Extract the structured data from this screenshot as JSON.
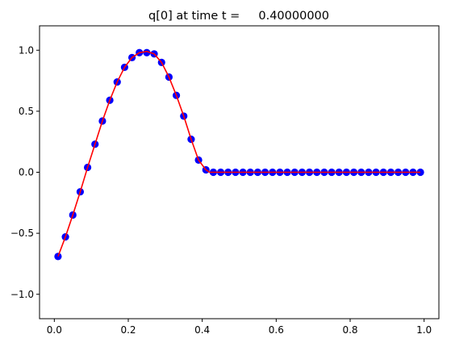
{
  "chart_data": {
    "type": "scatter",
    "title": "q[0] at time t =     0.40000000",
    "xlabel": "",
    "ylabel": "",
    "xlim": [
      -0.04,
      1.04
    ],
    "ylim": [
      -1.2,
      1.2
    ],
    "xticks": [
      0.0,
      0.2,
      0.4,
      0.6,
      0.8,
      1.0
    ],
    "xtick_labels": [
      "0.0",
      "0.2",
      "0.4",
      "0.6",
      "0.8",
      "1.0"
    ],
    "yticks": [
      -1.0,
      -0.5,
      0.0,
      0.5,
      1.0
    ],
    "ytick_labels": [
      "−1.0",
      "−0.5",
      "0.0",
      "0.5",
      "1.0"
    ],
    "grid": false,
    "legend": "none",
    "series": [
      {
        "kind": "points",
        "color": "#0000ff",
        "x": [
          0.01,
          0.03,
          0.05,
          0.07,
          0.09,
          0.11,
          0.13,
          0.15,
          0.17,
          0.19,
          0.21,
          0.23,
          0.25,
          0.27,
          0.29,
          0.31,
          0.33,
          0.35,
          0.37,
          0.39,
          0.41,
          0.43,
          0.45,
          0.47,
          0.49,
          0.51,
          0.53,
          0.55,
          0.57,
          0.59,
          0.61,
          0.63,
          0.65,
          0.67,
          0.69,
          0.71,
          0.73,
          0.75,
          0.77,
          0.79,
          0.81,
          0.83,
          0.85,
          0.87,
          0.89,
          0.91,
          0.93,
          0.95,
          0.97,
          0.99
        ],
        "y": [
          -0.69,
          -0.53,
          -0.35,
          -0.16,
          0.04,
          0.23,
          0.42,
          0.59,
          0.74,
          0.86,
          0.94,
          0.98,
          0.98,
          0.97,
          0.9,
          0.78,
          0.63,
          0.46,
          0.27,
          0.1,
          0.02,
          0.0,
          0.0,
          0.0,
          0.0,
          0.0,
          0.0,
          0.0,
          0.0,
          0.0,
          0.0,
          0.0,
          0.0,
          0.0,
          0.0,
          0.0,
          0.0,
          0.0,
          0.0,
          0.0,
          0.0,
          0.0,
          0.0,
          0.0,
          0.0,
          0.0,
          0.0,
          0.0,
          0.0,
          0.0
        ]
      },
      {
        "kind": "line",
        "color": "#ff0000",
        "x": [
          0.01,
          0.03,
          0.05,
          0.07,
          0.09,
          0.11,
          0.13,
          0.15,
          0.17,
          0.19,
          0.21,
          0.23,
          0.25,
          0.27,
          0.29,
          0.31,
          0.33,
          0.35,
          0.37,
          0.39,
          0.41,
          0.42,
          0.99
        ],
        "y": [
          -0.69,
          -0.53,
          -0.35,
          -0.16,
          0.04,
          0.23,
          0.42,
          0.59,
          0.74,
          0.86,
          0.94,
          0.98,
          0.99,
          0.97,
          0.9,
          0.78,
          0.63,
          0.46,
          0.27,
          0.1,
          0.02,
          0.0,
          0.0
        ]
      }
    ]
  }
}
